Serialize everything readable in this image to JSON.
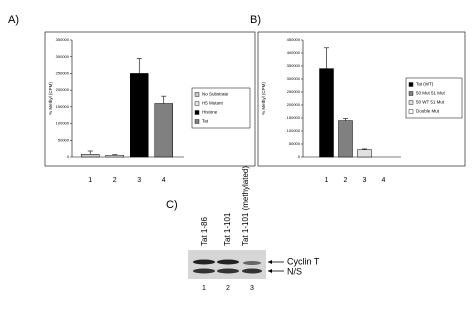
{
  "chart_data": [
    {
      "type": "bar",
      "label": "A)",
      "y_label": "% Methyl (CPM)",
      "categories": [
        "1",
        "2",
        "3",
        "4"
      ],
      "values": [
        8000,
        5000,
        250000,
        160000
      ],
      "errors": [
        10000,
        2000,
        45000,
        22000
      ],
      "colors": [
        "#c8c8c8",
        "#e8e8e8",
        "#000000",
        "#808080"
      ],
      "legend": [
        "No Substrate",
        "H5 Mutant",
        "Histone",
        "Tat"
      ],
      "ylim": [
        0,
        350000
      ],
      "yticks": [
        0,
        50000,
        100000,
        150000,
        200000,
        250000,
        300000,
        350000
      ]
    },
    {
      "type": "bar",
      "label": "B)",
      "y_label": "% Methyl (CPM)",
      "categories": [
        "1",
        "2",
        "3",
        "4"
      ],
      "values": [
        340000,
        140000,
        28000,
        0
      ],
      "errors": [
        80000,
        8000,
        3000,
        0
      ],
      "colors": [
        "#000000",
        "#808080",
        "#e0e0e0",
        "#ffffff"
      ],
      "legend": [
        "Tat (WT)",
        "50 Mut 51 Mut",
        "50 WT 51 Mut",
        "Double Mut"
      ],
      "ylim": [
        0,
        450000
      ],
      "yticks": [
        0,
        50000,
        100000,
        150000,
        200000,
        250000,
        300000,
        350000,
        400000,
        450000
      ]
    }
  ],
  "panel_c": {
    "label": "C)",
    "lanes": [
      "Tat 1-86",
      "Tat 1-101",
      "Tat 1-101 (methylated)"
    ],
    "lane_numbers": [
      "1",
      "2",
      "3"
    ],
    "bands": [
      "Cyclin T",
      "N/S"
    ]
  }
}
